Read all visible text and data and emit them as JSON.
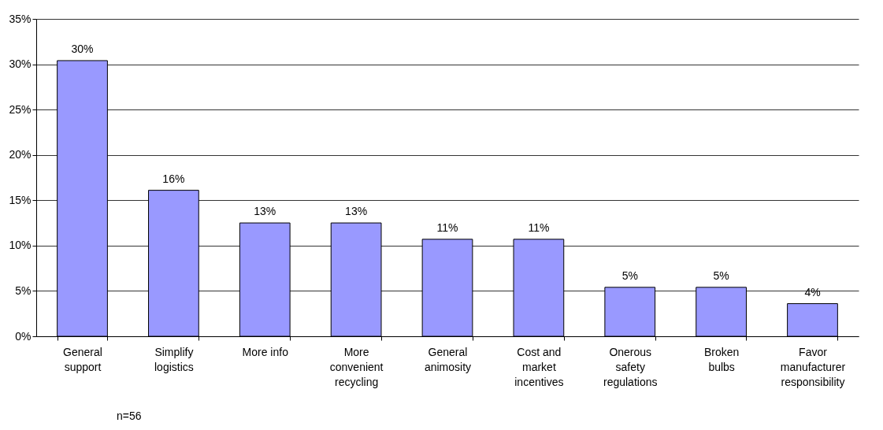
{
  "chart_data": {
    "type": "bar",
    "categories": [
      "General support",
      "Simplify logistics",
      "More info",
      "More convenient recycling",
      "General animosity",
      "Cost and market incentives",
      "Onerous safety regulations",
      "Broken bulbs",
      "Favor manufacturer responsibility"
    ],
    "values": [
      30.4,
      16.1,
      12.5,
      12.5,
      10.7,
      10.7,
      5.4,
      5.4,
      3.6
    ],
    "value_labels": [
      "30%",
      "16%",
      "13%",
      "13%",
      "11%",
      "11%",
      "5%",
      "5%",
      "4%"
    ],
    "color": "#9999ff",
    "ylim": [
      0,
      35
    ],
    "yticks": [
      {
        "value": 0,
        "label": "0%"
      },
      {
        "value": 5,
        "label": "5%"
      },
      {
        "value": 10,
        "label": "10%"
      },
      {
        "value": 15,
        "label": "15%"
      },
      {
        "value": 20,
        "label": "20%"
      },
      {
        "value": 25,
        "label": "25%"
      },
      {
        "value": 30,
        "label": "30%"
      },
      {
        "value": 35,
        "label": "35%"
      }
    ],
    "grid": "y",
    "annotations": [
      "n=56"
    ]
  }
}
